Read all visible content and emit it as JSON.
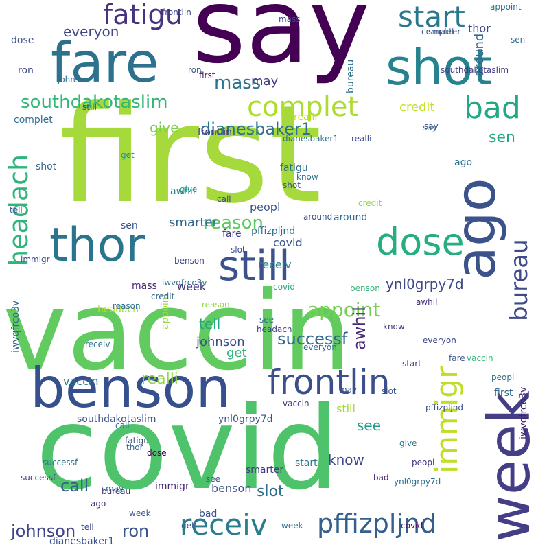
{
  "words": [
    {
      "text": "say",
      "color": "#440154"
    },
    {
      "text": "first",
      "color": "#a6d93c"
    },
    {
      "text": "vaccin",
      "color": "#62cb5f"
    },
    {
      "text": "covid",
      "color": "#4ec36b"
    },
    {
      "text": "week",
      "color": "#433e85"
    },
    {
      "text": "benson",
      "color": "#35508c"
    },
    {
      "text": "shot",
      "color": "#25828e"
    },
    {
      "text": "fare",
      "color": "#2c718e"
    },
    {
      "text": "ago",
      "color": "#3b528b"
    },
    {
      "text": "still",
      "color": "#3b528b"
    },
    {
      "text": "thor",
      "color": "#2b748e"
    },
    {
      "text": "frontlin",
      "color": "#3c4f8a"
    },
    {
      "text": "dose",
      "color": "#26ad81"
    },
    {
      "text": "immigr",
      "color": "#bddf26"
    },
    {
      "text": "receiv",
      "color": "#287c8e"
    },
    {
      "text": "pffizpljnd",
      "color": "#34608d"
    },
    {
      "text": "start",
      "color": "#2a788e"
    },
    {
      "text": "fatigu",
      "color": "#46327e"
    },
    {
      "text": "complet",
      "color": "#addc30"
    },
    {
      "text": "bad",
      "color": "#22a884"
    },
    {
      "text": "headach",
      "color": "#2fb47c"
    },
    {
      "text": "bureau",
      "color": "#3e4a89"
    },
    {
      "text": "southdakotaslim",
      "color": "#35b779"
    },
    {
      "text": "johnson",
      "color": "#414487"
    },
    {
      "text": "ron",
      "color": "#3b528b"
    },
    {
      "text": "dianesbaker1",
      "color": "#2c728e"
    },
    {
      "text": "mass",
      "color": "#2d708e"
    },
    {
      "text": "reason",
      "color": "#5ec962"
    },
    {
      "text": "successf",
      "color": "#31688e"
    },
    {
      "text": "ynl0grpy7d",
      "color": "#3e4989"
    },
    {
      "text": "appoint",
      "color": "#75d054"
    },
    {
      "text": "awhil",
      "color": "#472c7a"
    },
    {
      "text": "realli",
      "color": "#90d743"
    },
    {
      "text": "slot",
      "color": "#2e6e8e"
    },
    {
      "text": "tell",
      "color": "#22a785"
    },
    {
      "text": "call",
      "color": "#355f8d"
    },
    {
      "text": "give",
      "color": "#7ad151"
    },
    {
      "text": "sen",
      "color": "#22a884"
    },
    {
      "text": "everyon",
      "color": "#404688"
    },
    {
      "text": "credit",
      "color": "#bddf26"
    },
    {
      "text": "around",
      "color": "#2f6c8e"
    },
    {
      "text": "peopl",
      "color": "#3a548c"
    },
    {
      "text": "smarter",
      "color": "#31688e"
    },
    {
      "text": "get",
      "color": "#2fb47c"
    },
    {
      "text": "know",
      "color": "#3e4989"
    },
    {
      "text": "may",
      "color": "#443983"
    },
    {
      "text": "see",
      "color": "#1f9a8a"
    },
    {
      "text": "iwvqfrco3v",
      "color": "#31688e"
    },
    {
      "text": "vaccin",
      "color": "#2a788e"
    },
    {
      "text": "benson",
      "color": "#3b528b"
    },
    {
      "text": "week",
      "color": "#472d7b"
    },
    {
      "text": "appoint",
      "color": "#9bd93c"
    },
    {
      "text": "frontlin",
      "color": "#463480"
    },
    {
      "text": "realli",
      "color": "#c2df23"
    },
    {
      "text": "complet",
      "color": "#2e6e8e"
    },
    {
      "text": "johnson",
      "color": "#3e4c8a"
    },
    {
      "text": "mass",
      "color": "#482475"
    },
    {
      "text": "fatigu",
      "color": "#2e6f8e"
    },
    {
      "text": "shot",
      "color": "#31688e"
    },
    {
      "text": "covid",
      "color": "#38588c"
    },
    {
      "text": "dose",
      "color": "#3a538b"
    },
    {
      "text": "receiv",
      "color": "#26828e"
    },
    {
      "text": "successf",
      "color": "#2c728e"
    },
    {
      "text": "get",
      "color": "#21918c"
    },
    {
      "text": "sen",
      "color": "#3b528b"
    },
    {
      "text": "reason",
      "color": "#95d840"
    },
    {
      "text": "give",
      "color": "#1f9a8a"
    },
    {
      "text": "bad",
      "color": "#3b528b"
    },
    {
      "text": "headach",
      "color": "#b5de2b"
    },
    {
      "text": "ago",
      "color": "#2c728e"
    },
    {
      "text": "credit",
      "color": "#8ed645"
    },
    {
      "text": "start",
      "color": "#2b758e"
    },
    {
      "text": "tell",
      "color": "#39568c"
    },
    {
      "text": "slot",
      "color": "#3b528b"
    },
    {
      "text": "everyon",
      "color": "#3f4788"
    },
    {
      "text": "call",
      "color": "#404688"
    },
    {
      "text": "peopl",
      "color": "#453781"
    },
    {
      "text": "ron",
      "color": "#3e4989"
    },
    {
      "text": "know",
      "color": "#2d708e"
    },
    {
      "text": "may",
      "color": "#3d4e8a"
    },
    {
      "text": "see",
      "color": "#2d708e"
    },
    {
      "text": "awhil",
      "color": "#26828e"
    },
    {
      "text": "around",
      "color": "#2e6e8e"
    },
    {
      "text": "smarter",
      "color": "#453882"
    },
    {
      "text": "thor",
      "color": "#414487"
    },
    {
      "text": "first",
      "color": "#471063"
    },
    {
      "text": "still",
      "color": "#a0da39"
    },
    {
      "text": "immigr",
      "color": "#482878"
    },
    {
      "text": "bureau",
      "color": "#2c738e"
    },
    {
      "text": "ynl0grpy7d",
      "color": "#3b528b"
    },
    {
      "text": "pffizpljnd",
      "color": "#2c728e"
    },
    {
      "text": "southdakotaslim",
      "color": "#3a548c"
    },
    {
      "text": "dianesbaker1",
      "color": "#3b528b"
    },
    {
      "text": "iwvqfrco3v",
      "color": "#482173"
    },
    {
      "text": "fare",
      "color": "#433e85"
    },
    {
      "text": "say",
      "color": "#3d4d8a"
    },
    {
      "text": "vaccin",
      "color": "#453882"
    },
    {
      "text": "covid",
      "color": "#22a884"
    },
    {
      "text": "week",
      "color": "#3b528b"
    },
    {
      "text": "benson",
      "color": "#35b779"
    },
    {
      "text": "johnson",
      "color": "#2e6f8e"
    },
    {
      "text": "frontlin",
      "color": "#404588"
    },
    {
      "text": "complet",
      "color": "#39568c"
    },
    {
      "text": "appoint",
      "color": "#2d708e"
    },
    {
      "text": "realli",
      "color": "#3e4989"
    },
    {
      "text": "reason",
      "color": "#2c718e"
    },
    {
      "text": "headach",
      "color": "#423f85"
    },
    {
      "text": "fatigu",
      "color": "#3b518b"
    },
    {
      "text": "credit",
      "color": "#31688e"
    },
    {
      "text": "start",
      "color": "#404688"
    },
    {
      "text": "get",
      "color": "#3a548c"
    },
    {
      "text": "give",
      "color": "#2c728e"
    },
    {
      "text": "mass",
      "color": "#3b528b"
    },
    {
      "text": "bad",
      "color": "#481a6c"
    },
    {
      "text": "tell",
      "color": "#3e4a89"
    },
    {
      "text": "dose",
      "color": "#440154"
    },
    {
      "text": "shot",
      "color": "#3b528b"
    },
    {
      "text": "awhil",
      "color": "#463480"
    },
    {
      "text": "slot",
      "color": "#3a548c"
    },
    {
      "text": "call",
      "color": "#2e6e8e"
    },
    {
      "text": "see",
      "color": "#3b528b"
    },
    {
      "text": "may",
      "color": "#2c728e"
    },
    {
      "text": "know",
      "color": "#453781"
    },
    {
      "text": "ron",
      "color": "#3b528b"
    },
    {
      "text": "peopl",
      "color": "#2d708e"
    },
    {
      "text": "sen",
      "color": "#2e6f8e"
    },
    {
      "text": "around",
      "color": "#3d4e8a"
    },
    {
      "text": "everyon",
      "color": "#31688e"
    },
    {
      "text": "smarter",
      "color": "#3b528b"
    },
    {
      "text": "successf",
      "color": "#433e85"
    },
    {
      "text": "receiv",
      "color": "#2c728e"
    },
    {
      "text": "immigr",
      "color": "#3e4989"
    },
    {
      "text": "bureau",
      "color": "#46327e"
    },
    {
      "text": "still",
      "color": "#3b528b"
    },
    {
      "text": "thor",
      "color": "#31688e"
    },
    {
      "text": "ago",
      "color": "#482878"
    },
    {
      "text": "fare",
      "color": "#3a548c"
    },
    {
      "text": "dianesbaker1",
      "color": "#2c728e"
    },
    {
      "text": "southdakotaslim",
      "color": "#443983"
    },
    {
      "text": "ynl0grpy7d",
      "color": "#2e6e8e"
    },
    {
      "text": "pffizpljnd",
      "color": "#3b528b"
    },
    {
      "text": "iwvqfrco3v",
      "color": "#2c728e"
    },
    {
      "text": "first",
      "color": "#31688e"
    },
    {
      "text": "say",
      "color": "#2e6f8e"
    },
    {
      "text": "vaccin",
      "color": "#35b779"
    },
    {
      "text": "covid",
      "color": "#471063"
    },
    {
      "text": "week",
      "color": "#2d708e"
    },
    {
      "text": "benson",
      "color": "#3e4989"
    }
  ]
}
